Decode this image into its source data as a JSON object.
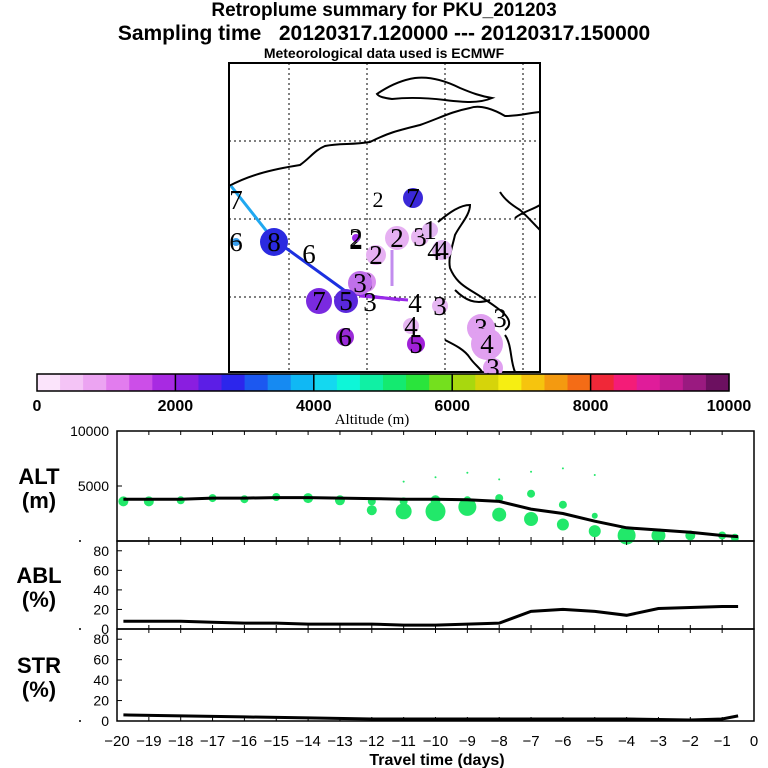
{
  "header": {
    "title": "Retroplume summary for PKU_201203",
    "sampling": "Sampling time   20120317.120000 --- 20120317.150000",
    "met": "Meteorological data used is ECMWF"
  },
  "chart_data": [
    {
      "type": "scatter",
      "name": "trajectory-map",
      "description_text": "map panel",
      "labels": [
        {
          "text": "7",
          "color": "#000000",
          "size": 0
        },
        {
          "text": "6",
          "color": "#3aa0f0",
          "size": 4
        },
        {
          "text": "8",
          "color": "#2b2ae0",
          "size": 14
        },
        {
          "text": "6",
          "color": "#ffffff",
          "size": 0
        },
        {
          "text": "2",
          "color": "#ffffff",
          "size": 0
        },
        {
          "text": "7",
          "color": "#3a28d8",
          "size": 10
        },
        {
          "text": "2",
          "color": "#9a2ae8",
          "size": 4
        },
        {
          "text": "2",
          "color": "#e6b0f2",
          "size": 10
        },
        {
          "text": "2",
          "color": "#e6b0f2",
          "size": 12
        },
        {
          "text": "3",
          "color": "#e8b6f2",
          "size": 9
        },
        {
          "text": "4",
          "color": "#e2b6f2",
          "size": 10
        },
        {
          "text": "1",
          "color": "#e2b6f2",
          "size": 8
        },
        {
          "text": "4",
          "color": "#ffffff",
          "size": 0
        },
        {
          "text": "3",
          "color": "#d890ee",
          "size": 10
        },
        {
          "text": "3",
          "color": "#ffffff",
          "size": 0
        },
        {
          "text": "3",
          "color": "#c070ea",
          "size": 12
        },
        {
          "text": "7",
          "color": "#7a2ae0",
          "size": 13
        },
        {
          "text": "5",
          "color": "#5a28dc",
          "size": 12
        },
        {
          "text": "4",
          "color": "#ffffff",
          "size": 0
        },
        {
          "text": "3",
          "color": "#e6b6f2",
          "size": 8
        },
        {
          "text": "4",
          "color": "#e6b6f2",
          "size": 8
        },
        {
          "text": "6",
          "color": "#9a2ad8",
          "size": 9
        },
        {
          "text": "5",
          "color": "#a020d8",
          "size": 9
        },
        {
          "text": "3",
          "color": "#ffffff",
          "size": 0
        },
        {
          "text": "3",
          "color": "#e0a0f0",
          "size": 14
        },
        {
          "text": "4",
          "color": "#e0a0f0",
          "size": 16
        },
        {
          "text": "3",
          "color": "#e0a0f0",
          "size": 10
        }
      ]
    },
    {
      "type": "colorbar",
      "name": "altitude-colorbar",
      "xlabel": "Altitude (m)",
      "range": [
        0,
        10000
      ],
      "ticks": [
        "0",
        "2000",
        "4000",
        "6000",
        "8000",
        "10000"
      ],
      "colors": [
        "#fbe4fb",
        "#f4c4f6",
        "#eca4f2",
        "#e27cee",
        "#cc4ee8",
        "#a82ae2",
        "#8a1ee0",
        "#5c1ee6",
        "#2c26ec",
        "#1c58f0",
        "#168af2",
        "#10b8f4",
        "#14d8f0",
        "#0ef6d8",
        "#10f0a4",
        "#14ea70",
        "#2ae43c",
        "#74e01e",
        "#a8d80e",
        "#d6d40a",
        "#f6ee12",
        "#f6c40e",
        "#f49a10",
        "#f46c16",
        "#f02838",
        "#f41c78",
        "#e01c9a",
        "#c21c92",
        "#9a1a80",
        "#6c1060"
      ]
    },
    {
      "type": "line",
      "name": "alt-panel",
      "ylabel": "ALT",
      "yunit": "(m)",
      "ylim": [
        0,
        10000
      ],
      "yticks": [
        "10000",
        "5000"
      ],
      "x": [
        -19.8,
        -19.0,
        -18.0,
        -17.0,
        -16.0,
        -15.0,
        -14.0,
        -13.0,
        -12.0,
        -11.0,
        -10.0,
        -9.0,
        -8.0,
        -7.0,
        -6.0,
        -5.0,
        -4.0,
        -3.0,
        -2.0,
        -1.0,
        -0.5
      ],
      "values": [
        3800,
        3800,
        3800,
        3900,
        3900,
        3950,
        3950,
        3900,
        3850,
        3800,
        3800,
        3750,
        3600,
        2900,
        2500,
        1800,
        1200,
        1000,
        800,
        500,
        400
      ],
      "dots_x": [
        -19.8,
        -19.0,
        -18.0,
        -17.0,
        -16.0,
        -15.0,
        -14.0,
        -13.0,
        -12.0,
        -12.0,
        -11.0,
        -11.0,
        -10.0,
        -10.0,
        -9.0,
        -9.0,
        -8.0,
        -8.0,
        -7.0,
        -7.0,
        -6.0,
        -6.0,
        -5.0,
        -5.0,
        -4.0,
        -4.0,
        -3.0,
        -2.0,
        -1.0,
        -0.6,
        -11.0,
        -10.0,
        -9.0,
        -8.0,
        -7.0,
        -6.0,
        -5.0
      ],
      "dots_y": [
        3600,
        3600,
        3700,
        3900,
        3800,
        4000,
        3900,
        3700,
        3600,
        2800,
        3600,
        2700,
        3700,
        2700,
        3700,
        3100,
        3900,
        2400,
        4300,
        2000,
        3300,
        1500,
        2300,
        900,
        1000,
        500,
        500,
        500,
        500,
        300,
        5400,
        5800,
        6200,
        5600,
        6300,
        6600,
        6000
      ],
      "dots_r": [
        5,
        5,
        4,
        4,
        4,
        4,
        5,
        5,
        4,
        5,
        4,
        8,
        5,
        10,
        4,
        9,
        4,
        7,
        4,
        7,
        4,
        6,
        3,
        6,
        3,
        9,
        7,
        5,
        4,
        4,
        1,
        1,
        1,
        1,
        1,
        1,
        1
      ]
    },
    {
      "type": "line",
      "name": "abl-panel",
      "ylabel": "ABL",
      "yunit": "(%)",
      "ylim": [
        0,
        90
      ],
      "yticks": [
        "0",
        "20",
        "40",
        "60",
        "80"
      ],
      "x": [
        -19.8,
        -18,
        -17,
        -16,
        -15,
        -14,
        -13,
        -12,
        -11,
        -10,
        -9,
        -8,
        -7,
        -6,
        -5,
        -4,
        -3,
        -2,
        -1,
        -0.5
      ],
      "values": [
        8,
        8,
        7,
        6,
        6,
        5,
        5,
        5,
        4,
        4,
        5,
        6,
        18,
        20,
        18,
        14,
        21,
        22,
        23,
        23
      ]
    },
    {
      "type": "line",
      "name": "str-panel",
      "ylabel": "STR",
      "yunit": "(%)",
      "ylim": [
        0,
        90
      ],
      "yticks": [
        "0",
        "20",
        "40",
        "60",
        "80"
      ],
      "x": [
        -19.8,
        -18,
        -16,
        -14,
        -12,
        -10,
        -8,
        -6,
        -4,
        -2,
        -1,
        -0.5
      ],
      "values": [
        6,
        5,
        4,
        3,
        2,
        2,
        2,
        2,
        2,
        1,
        2,
        5
      ]
    }
  ],
  "xaxis": {
    "label": "Travel time (days)",
    "ticks": [
      "−20",
      "−19",
      "−18",
      "−17",
      "−16",
      "−15",
      "−14",
      "−13",
      "−12",
      "−11",
      "−10",
      "−9",
      "−8",
      "−7",
      "−6",
      "−5",
      "−4",
      "−3",
      "−2",
      "−1",
      "0"
    ]
  }
}
